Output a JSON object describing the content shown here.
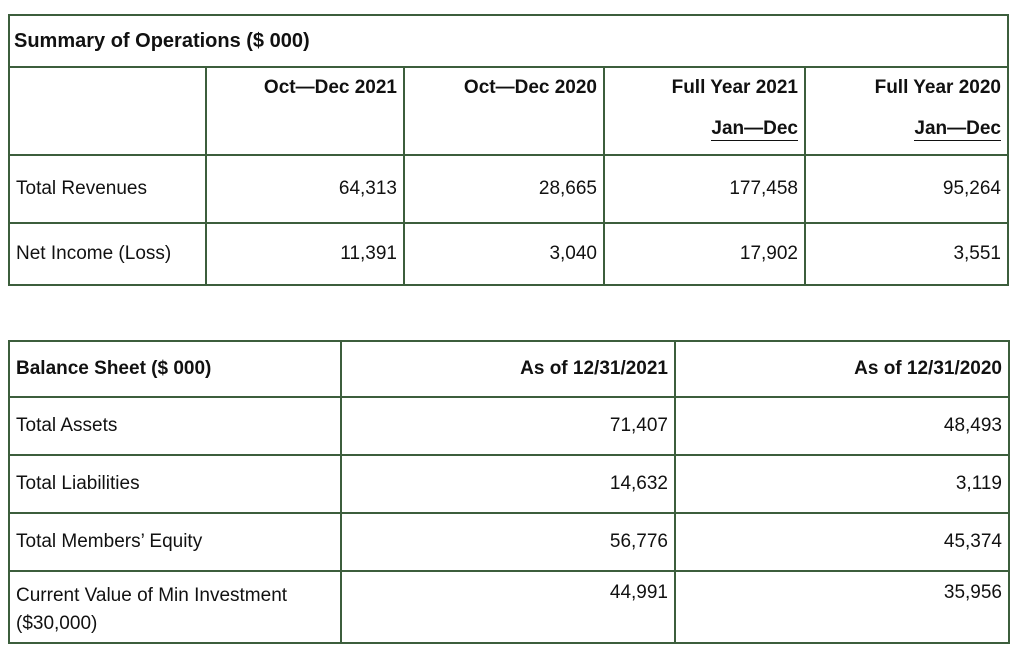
{
  "operations": {
    "title": "Summary of Operations ($ 000)",
    "columns": [
      {
        "line1": "Oct—Dec 2021",
        "line2": ""
      },
      {
        "line1": "Oct—Dec 2020",
        "line2": ""
      },
      {
        "line1": "Full Year 2021",
        "line2": "Jan—Dec"
      },
      {
        "line1": "Full Year 2020",
        "line2": "Jan—Dec"
      }
    ],
    "rows": [
      {
        "label": "Total Revenues",
        "values": [
          "64,313",
          "28,665",
          "177,458",
          "95,264"
        ]
      },
      {
        "label": "Net Income (Loss)",
        "values": [
          "11,391",
          "3,040",
          "17,902",
          "3,551"
        ]
      }
    ]
  },
  "balance_sheet": {
    "title": "Balance Sheet ($ 000)",
    "columns": [
      "As of 12/31/2021",
      "As of 12/31/2020"
    ],
    "rows": [
      {
        "label": "Total Assets",
        "values": [
          "71,407",
          "48,493"
        ]
      },
      {
        "label": "Total Liabilities",
        "values": [
          "14,632",
          "3,119"
        ]
      },
      {
        "label": "Total Members’ Equity",
        "values": [
          "56,776",
          "45,374"
        ]
      },
      {
        "label": "Current Value of Min Investment ($30,000)",
        "values": [
          "44,991",
          "35,956"
        ]
      }
    ]
  }
}
